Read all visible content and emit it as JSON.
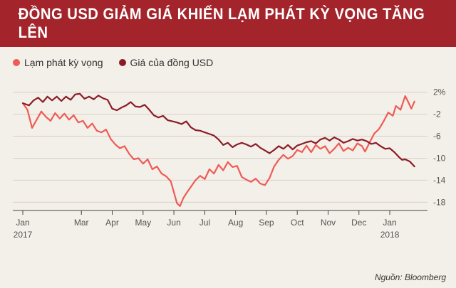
{
  "title": "ĐỒNG USD GIẢM GIÁ KHIẾN LẠM PHÁT KỲ VỌNG TĂNG LÊN",
  "source": "Nguồn: Bloomberg",
  "colors": {
    "accent": "#a3242b",
    "series_inflation": "#ef5b55",
    "series_usd": "#8b1c26",
    "background": "#f3efe9"
  },
  "chart_data": {
    "type": "line",
    "title": "ĐỒNG USD GIẢM GIÁ KHIẾN LẠM PHÁT KỲ VỌNG TĂNG LÊN",
    "xlabel": "",
    "ylabel": "",
    "x_tick_labels": [
      {
        "month": 0,
        "label": "Jan",
        "year": "2017"
      },
      {
        "month": 1.9,
        "label": "Mar"
      },
      {
        "month": 2.9,
        "label": "Apr"
      },
      {
        "month": 3.9,
        "label": "May"
      },
      {
        "month": 4.9,
        "label": "Jun"
      },
      {
        "month": 5.9,
        "label": "Jul"
      },
      {
        "month": 6.9,
        "label": "Aug"
      },
      {
        "month": 7.9,
        "label": "Sep"
      },
      {
        "month": 8.9,
        "label": "Oct"
      },
      {
        "month": 9.9,
        "label": "Nov"
      },
      {
        "month": 10.9,
        "label": "Dec"
      },
      {
        "month": 11.9,
        "label": "Jan",
        "year": "2018"
      }
    ],
    "y_ticks": [
      {
        "value": 2,
        "label": "2%"
      },
      {
        "value": -2,
        "label": "-2"
      },
      {
        "value": -6,
        "label": "-6"
      },
      {
        "value": -10,
        "label": "-10"
      },
      {
        "value": -14,
        "label": "-14"
      },
      {
        "value": -18,
        "label": "-18"
      }
    ],
    "ylim": [
      -19.5,
      3.5
    ],
    "xlim_months": [
      0,
      12.8
    ],
    "grid": "horizontal",
    "series": [
      {
        "name": "Lạm phát kỳ vọng",
        "color": "#ef5b55",
        "points": [
          [
            0,
            0
          ],
          [
            0.15,
            -1.2
          ],
          [
            0.3,
            -4.5
          ],
          [
            0.45,
            -3
          ],
          [
            0.6,
            -1.5
          ],
          [
            0.75,
            -2.5
          ],
          [
            0.9,
            -3.2
          ],
          [
            1.05,
            -1.8
          ],
          [
            1.2,
            -2.8
          ],
          [
            1.35,
            -1.9
          ],
          [
            1.5,
            -3
          ],
          [
            1.65,
            -2.2
          ],
          [
            1.8,
            -3.5
          ],
          [
            1.95,
            -3.2
          ],
          [
            2.1,
            -4.5
          ],
          [
            2.25,
            -3.7
          ],
          [
            2.4,
            -5
          ],
          [
            2.55,
            -5.3
          ],
          [
            2.7,
            -4.8
          ],
          [
            2.85,
            -6.5
          ],
          [
            3,
            -7.5
          ],
          [
            3.15,
            -8.2
          ],
          [
            3.3,
            -7.8
          ],
          [
            3.45,
            -9.2
          ],
          [
            3.6,
            -10.2
          ],
          [
            3.75,
            -10
          ],
          [
            3.9,
            -11
          ],
          [
            4.05,
            -10.2
          ],
          [
            4.2,
            -12
          ],
          [
            4.35,
            -11.5
          ],
          [
            4.5,
            -12.8
          ],
          [
            4.65,
            -13.3
          ],
          [
            4.8,
            -14.2
          ],
          [
            4.9,
            -16.2
          ],
          [
            5,
            -18.2
          ],
          [
            5.1,
            -18.7
          ],
          [
            5.2,
            -17.3
          ],
          [
            5.3,
            -16.4
          ],
          [
            5.45,
            -15.2
          ],
          [
            5.6,
            -14
          ],
          [
            5.75,
            -13.2
          ],
          [
            5.9,
            -13.8
          ],
          [
            6.05,
            -12
          ],
          [
            6.2,
            -12.8
          ],
          [
            6.35,
            -11.2
          ],
          [
            6.5,
            -12.2
          ],
          [
            6.65,
            -10.7
          ],
          [
            6.8,
            -11.6
          ],
          [
            6.95,
            -11.4
          ],
          [
            7.1,
            -13.4
          ],
          [
            7.25,
            -13.9
          ],
          [
            7.4,
            -14.3
          ],
          [
            7.55,
            -13.7
          ],
          [
            7.7,
            -14.6
          ],
          [
            7.85,
            -14.9
          ],
          [
            8,
            -13.6
          ],
          [
            8.15,
            -11.5
          ],
          [
            8.3,
            -10.3
          ],
          [
            8.45,
            -9.4
          ],
          [
            8.6,
            -10.1
          ],
          [
            8.75,
            -9.6
          ],
          [
            8.9,
            -8.5
          ],
          [
            9.05,
            -8.9
          ],
          [
            9.2,
            -7.7
          ],
          [
            9.35,
            -8.9
          ],
          [
            9.5,
            -7.6
          ],
          [
            9.65,
            -8.3
          ],
          [
            9.8,
            -7.8
          ],
          [
            9.95,
            -9.1
          ],
          [
            10.1,
            -8.3
          ],
          [
            10.25,
            -7.3
          ],
          [
            10.4,
            -8.7
          ],
          [
            10.55,
            -8.1
          ],
          [
            10.7,
            -8.6
          ],
          [
            10.85,
            -7.3
          ],
          [
            11,
            -7.8
          ],
          [
            11.1,
            -8.8
          ],
          [
            11.25,
            -7.1
          ],
          [
            11.4,
            -5.5
          ],
          [
            11.55,
            -4.7
          ],
          [
            11.7,
            -3.3
          ],
          [
            11.85,
            -1.7
          ],
          [
            12,
            -2.3
          ],
          [
            12.1,
            -0.5
          ],
          [
            12.25,
            -1.2
          ],
          [
            12.4,
            1.3
          ],
          [
            12.5,
            0.2
          ],
          [
            12.6,
            -1
          ],
          [
            12.7,
            0.3
          ]
        ]
      },
      {
        "name": "Giá của đồng USD",
        "color": "#8b1c26",
        "points": [
          [
            0,
            0
          ],
          [
            0.2,
            -0.4
          ],
          [
            0.35,
            0.5
          ],
          [
            0.5,
            1
          ],
          [
            0.65,
            0.2
          ],
          [
            0.8,
            1.2
          ],
          [
            0.95,
            0.5
          ],
          [
            1.1,
            1.2
          ],
          [
            1.25,
            0.4
          ],
          [
            1.4,
            1.2
          ],
          [
            1.55,
            0.6
          ],
          [
            1.7,
            1.6
          ],
          [
            1.85,
            1.7
          ],
          [
            2,
            0.8
          ],
          [
            2.15,
            1.2
          ],
          [
            2.3,
            0.7
          ],
          [
            2.45,
            1.4
          ],
          [
            2.6,
            0.9
          ],
          [
            2.75,
            0.6
          ],
          [
            2.9,
            -1
          ],
          [
            3.05,
            -1.3
          ],
          [
            3.2,
            -0.8
          ],
          [
            3.35,
            -0.4
          ],
          [
            3.5,
            0.2
          ],
          [
            3.65,
            -0.6
          ],
          [
            3.8,
            -0.7
          ],
          [
            3.95,
            -0.3
          ],
          [
            4.1,
            -1.2
          ],
          [
            4.25,
            -2.2
          ],
          [
            4.4,
            -2.6
          ],
          [
            4.55,
            -2.3
          ],
          [
            4.7,
            -3.1
          ],
          [
            4.85,
            -3.3
          ],
          [
            5,
            -3.5
          ],
          [
            5.15,
            -3.8
          ],
          [
            5.3,
            -3.3
          ],
          [
            5.45,
            -4.4
          ],
          [
            5.6,
            -4.9
          ],
          [
            5.75,
            -5
          ],
          [
            5.9,
            -5.3
          ],
          [
            6.05,
            -5.6
          ],
          [
            6.2,
            -5.9
          ],
          [
            6.35,
            -6.6
          ],
          [
            6.5,
            -7.6
          ],
          [
            6.65,
            -7.2
          ],
          [
            6.8,
            -8
          ],
          [
            6.95,
            -7.5
          ],
          [
            7.1,
            -7.2
          ],
          [
            7.25,
            -7.5
          ],
          [
            7.4,
            -7.9
          ],
          [
            7.55,
            -7.4
          ],
          [
            7.7,
            -8.1
          ],
          [
            7.85,
            -8.6
          ],
          [
            8,
            -9.1
          ],
          [
            8.15,
            -8.5
          ],
          [
            8.3,
            -7.8
          ],
          [
            8.45,
            -8.3
          ],
          [
            8.6,
            -7.6
          ],
          [
            8.75,
            -8.4
          ],
          [
            8.9,
            -7.7
          ],
          [
            9.05,
            -7.4
          ],
          [
            9.2,
            -7.1
          ],
          [
            9.35,
            -6.9
          ],
          [
            9.5,
            -7.3
          ],
          [
            9.65,
            -6.6
          ],
          [
            9.8,
            -6.3
          ],
          [
            9.95,
            -6.8
          ],
          [
            10.1,
            -6.2
          ],
          [
            10.25,
            -6.6
          ],
          [
            10.4,
            -7.2
          ],
          [
            10.55,
            -6.9
          ],
          [
            10.7,
            -6.5
          ],
          [
            10.85,
            -6.8
          ],
          [
            11,
            -6.6
          ],
          [
            11.15,
            -6.9
          ],
          [
            11.3,
            -7.4
          ],
          [
            11.45,
            -7.2
          ],
          [
            11.6,
            -7.8
          ],
          [
            11.75,
            -8.3
          ],
          [
            11.9,
            -8.2
          ],
          [
            12.05,
            -8.9
          ],
          [
            12.2,
            -9.8
          ],
          [
            12.3,
            -10.3
          ],
          [
            12.4,
            -10.2
          ],
          [
            12.55,
            -10.6
          ],
          [
            12.7,
            -11.5
          ]
        ]
      }
    ]
  }
}
